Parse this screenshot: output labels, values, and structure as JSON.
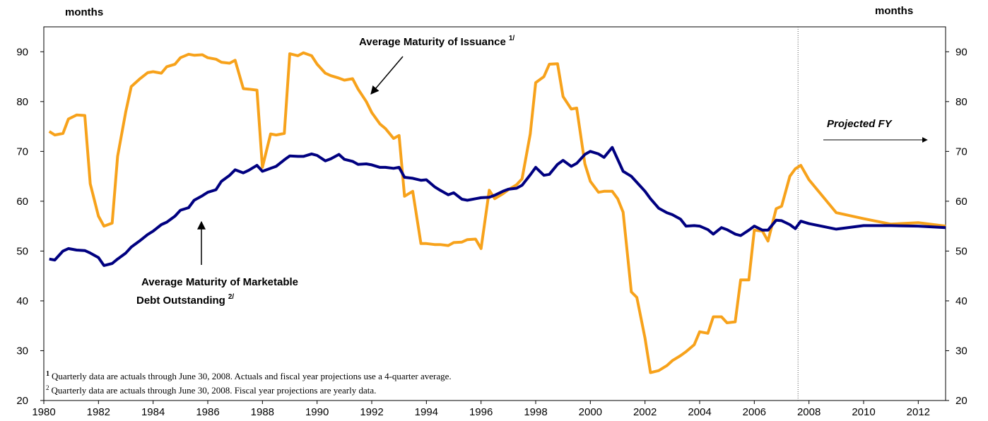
{
  "chart_data": {
    "type": "line",
    "y_axis_label": "months",
    "y2_axis_label": "months",
    "xlim": [
      1980,
      2013
    ],
    "xticks": [
      1980,
      1982,
      1984,
      1986,
      1988,
      1990,
      1992,
      1994,
      1996,
      1998,
      2000,
      2002,
      2004,
      2006,
      2008,
      2010,
      2012
    ],
    "ylim": [
      20,
      95
    ],
    "yticks": [
      20,
      30,
      40,
      50,
      60,
      70,
      80,
      90
    ],
    "y2lim": [
      20,
      95
    ],
    "y2ticks": [
      20,
      30,
      40,
      50,
      60,
      70,
      80,
      90
    ],
    "grid": false,
    "vline_x": 2007.6,
    "x": [
      1980.2,
      1980.4,
      1980.7,
      1980.9,
      1981.2,
      1981.5,
      1981.7,
      1982.0,
      1982.2,
      1982.5,
      1982.7,
      1983.0,
      1983.2,
      1983.5,
      1983.8,
      1984.0,
      1984.3,
      1984.5,
      1984.8,
      1985.0,
      1985.3,
      1985.5,
      1985.8,
      1986.0,
      1986.3,
      1986.5,
      1986.8,
      1987.0,
      1987.3,
      1987.5,
      1987.8,
      1988.0,
      1988.3,
      1988.5,
      1988.8,
      1989.0,
      1989.3,
      1989.5,
      1989.8,
      1990.0,
      1990.3,
      1990.5,
      1990.8,
      1991.0,
      1991.3,
      1991.5,
      1991.8,
      1992.0,
      1992.3,
      1992.5,
      1992.8,
      1993.0,
      1993.2,
      1993.5,
      1993.8,
      1994.0,
      1994.3,
      1994.5,
      1994.8,
      1995.0,
      1995.3,
      1995.5,
      1995.8,
      1996.0,
      1996.3,
      1996.5,
      1996.8,
      1997.0,
      1997.3,
      1997.5,
      1997.8,
      1998.0,
      1998.3,
      1998.5,
      1998.8,
      1999.0,
      1999.3,
      1999.5,
      1999.8,
      2000.0,
      2000.3,
      2000.5,
      2000.8,
      2001.0,
      2001.2,
      2001.5,
      2001.7,
      2002.0,
      2002.2,
      2002.5,
      2002.8,
      2003.0,
      2003.3,
      2003.5,
      2003.8,
      2004.0,
      2004.3,
      2004.5,
      2004.8,
      2005.0,
      2005.3,
      2005.5,
      2005.8,
      2006.0,
      2006.3,
      2006.5,
      2006.8,
      2007.0,
      2007.3,
      2007.5,
      2007.7,
      2008,
      2009,
      2010,
      2011,
      2012,
      2013
    ],
    "series": [
      {
        "color": "#f7a21b",
        "values": [
          74,
          73.3,
          73.6,
          76.5,
          77.3,
          77.2,
          63.5,
          57,
          55,
          55.6,
          69,
          78,
          83,
          84.5,
          85.8,
          86,
          85.7,
          87,
          87.5,
          88.8,
          89.5,
          89.3,
          89.4,
          88.8,
          88.5,
          87.9,
          87.7,
          88.3,
          82.6,
          82.5,
          82.3,
          66.8,
          73.5,
          73.3,
          73.6,
          89.6,
          89.2,
          89.8,
          89.2,
          87.5,
          85.7,
          85.2,
          84.7,
          84.3,
          84.6,
          82.5,
          80,
          77.8,
          75.5,
          74.6,
          72.6,
          73.2,
          61,
          62,
          51.5,
          51.5,
          51.3,
          51.3,
          51.1,
          51.7,
          51.8,
          52.3,
          52.4,
          50.5,
          62.2,
          60.5,
          61.5,
          62.3,
          63.3,
          64.5,
          73.5,
          83.8,
          85,
          87.5,
          87.6,
          81,
          78.5,
          78.7,
          67.5,
          64,
          61.8,
          62,
          62,
          60.5,
          57.8,
          41.8,
          40.7,
          32.5,
          25.6,
          26,
          27,
          28,
          29,
          29.8,
          31.2,
          33.8,
          33.5,
          36.8,
          36.8,
          35.6,
          35.8,
          44.2,
          44.2,
          54.2,
          54,
          52,
          58.5,
          59,
          65,
          66.5,
          67.2,
          64.3,
          57.7,
          56.5,
          55.4,
          55.7,
          55
        ]
      },
      {
        "color": "#000080",
        "values": [
          48.4,
          48.2,
          50,
          50.5,
          50.2,
          50.1,
          49.6,
          48.7,
          47.1,
          47.5,
          48.4,
          49.6,
          50.8,
          52,
          53.3,
          54,
          55.3,
          55.8,
          57,
          58.2,
          58.7,
          60.2,
          61.1,
          61.8,
          62.3,
          64,
          65.2,
          66.3,
          65.7,
          66.2,
          67.2,
          66,
          66.6,
          67,
          68.3,
          69.1,
          69,
          69,
          69.5,
          69.2,
          68.1,
          68.5,
          69.4,
          68.4,
          68,
          67.4,
          67.5,
          67.3,
          66.8,
          66.8,
          66.6,
          66.8,
          64.8,
          64.6,
          64.2,
          64.3,
          62.9,
          62.2,
          61.3,
          61.7,
          60.4,
          60.2,
          60.5,
          60.7,
          60.8,
          61.2,
          62,
          62.4,
          62.6,
          63.2,
          65.3,
          66.8,
          65.2,
          65.4,
          67.4,
          68.2,
          67,
          67.6,
          69.4,
          70,
          69.5,
          68.8,
          70.8,
          68.4,
          66,
          65,
          63.8,
          62,
          60.5,
          58.6,
          57.7,
          57.3,
          56.4,
          55,
          55.1,
          55,
          54.3,
          53.4,
          54.7,
          54.3,
          53.4,
          53.1,
          54.2,
          55,
          54.2,
          54.2,
          56.2,
          56.1,
          55.3,
          54.5,
          56,
          55.5,
          54.4,
          55.1,
          55.1,
          55,
          54.7
        ]
      }
    ],
    "annotations": [
      {
        "text": "Average Maturity of Issuance",
        "sup": "1/"
      },
      {
        "text": "Average Maturity of Marketable",
        "text2": "Debt Outstanding",
        "sup": "2/"
      },
      {
        "text": "Projected FY"
      }
    ],
    "footnotes": [
      {
        "marker": "1",
        "text": "Quarterly data are actuals through June 30, 2008.   Actuals and fiscal year projections use a 4-quarter average."
      },
      {
        "marker": "2",
        "text": "Quarterly data are actuals through June 30, 2008.   Fiscal year projections are yearly data."
      }
    ]
  }
}
